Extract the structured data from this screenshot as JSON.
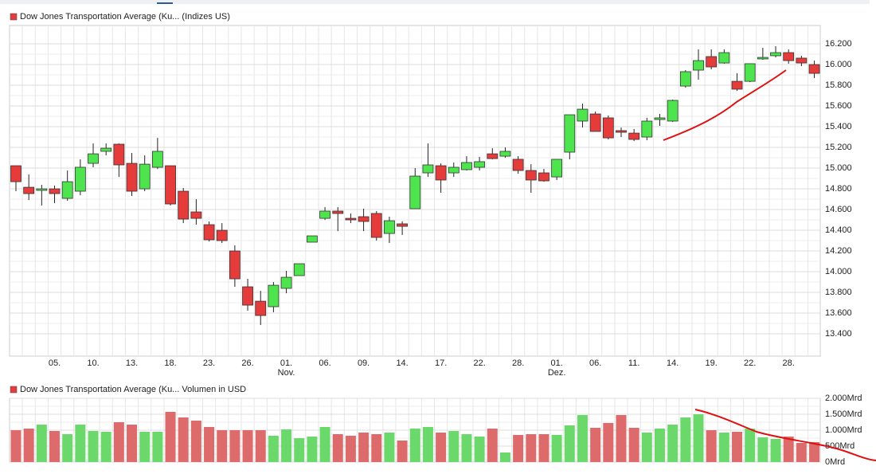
{
  "chart_data": [
    {
      "type": "candlestick",
      "title": "Dow Jones Transportation Average (Ku... (Indizes US)",
      "categories": [
        null,
        null,
        null,
        "05.",
        null,
        null,
        "10.",
        null,
        null,
        "13.",
        null,
        null,
        "18.",
        null,
        null,
        "23.",
        null,
        null,
        "26.",
        null,
        null,
        {
          "label": "01.",
          "sub": "Nov."
        },
        null,
        null,
        "06.",
        null,
        null,
        "09.",
        null,
        null,
        "14.",
        null,
        null,
        "17.",
        null,
        null,
        "22.",
        null,
        null,
        "28.",
        null,
        null,
        {
          "label": "01.",
          "sub": "Dez."
        },
        null,
        null,
        "06.",
        null,
        null,
        "11.",
        null,
        null,
        "14.",
        null,
        null,
        "19.",
        null,
        null,
        "22.",
        null,
        null,
        "28.",
        null,
        null
      ],
      "open": [
        15023,
        14815,
        14785,
        14800,
        14708,
        14777,
        15046,
        15162,
        15231,
        15046,
        14800,
        15008,
        15023,
        14777,
        14577,
        14454,
        14400,
        14200,
        13854,
        13715,
        13662,
        13839,
        13962,
        14285,
        14515,
        14585,
        14515,
        14531,
        14562,
        14369,
        14462,
        14608,
        14954,
        15023,
        14954,
        14985,
        15008,
        15138,
        15115,
        15085,
        14977,
        14954,
        14915,
        15154,
        15454,
        15523,
        15485,
        15362,
        15338,
        15300,
        15469,
        15454,
        15792,
        15946,
        16077,
        16015,
        15838,
        15838,
        16054,
        16085,
        16115,
        16062,
        16000
      ],
      "high": [
        15023,
        14938,
        14839,
        14831,
        14977,
        15085,
        15238,
        15238,
        15238,
        15146,
        15123,
        15292,
        15023,
        14808,
        14700,
        14485,
        14469,
        14254,
        13931,
        13815,
        13900,
        14008,
        14077,
        14346,
        14623,
        14623,
        14562,
        14608,
        14585,
        14531,
        14485,
        15000,
        15238,
        15046,
        15054,
        15115,
        15108,
        15192,
        15200,
        15115,
        15038,
        14992,
        15085,
        15515,
        15623,
        15546,
        15508,
        15392,
        15377,
        15485,
        15523,
        15662,
        15946,
        16146,
        16146,
        16146,
        15915,
        16008,
        16162,
        16177,
        16146,
        16085,
        16038
      ],
      "low": [
        14777,
        14692,
        14639,
        14662,
        14685,
        14738,
        15008,
        15123,
        14915,
        14731,
        14777,
        14992,
        14639,
        14469,
        14454,
        14292,
        14277,
        13854,
        13623,
        13485,
        13608,
        13792,
        13962,
        14285,
        14500,
        14392,
        14469,
        14392,
        14300,
        14277,
        14354,
        14608,
        14915,
        14762,
        14915,
        14977,
        14977,
        15085,
        15100,
        14946,
        14762,
        14869,
        14885,
        15085,
        15392,
        15354,
        15277,
        15300,
        15262,
        15269,
        15408,
        15446,
        15777,
        15854,
        15954,
        16008,
        15746,
        15831,
        16046,
        16069,
        16008,
        15985,
        15869
      ],
      "close": [
        14869,
        14754,
        14800,
        14754,
        14869,
        15008,
        15138,
        15192,
        15031,
        14777,
        15038,
        15162,
        14654,
        14508,
        14515,
        14308,
        14300,
        13931,
        13677,
        13577,
        13869,
        13946,
        14077,
        14346,
        14585,
        14562,
        14500,
        14485,
        14331,
        14492,
        14438,
        14923,
        15031,
        14885,
        15008,
        15054,
        15062,
        15092,
        15162,
        14977,
        14885,
        14877,
        15085,
        15515,
        15569,
        15354,
        15292,
        15346,
        15277,
        15454,
        15485,
        15654,
        15931,
        16038,
        15977,
        16115,
        15762,
        16008,
        16069,
        16115,
        16038,
        16015,
        15915
      ],
      "ylim": [
        13185,
        16377
      ],
      "yticks": [
        {
          "value": 13400,
          "label": "13.400"
        },
        {
          "value": 13600,
          "label": "13.600"
        },
        {
          "value": 13800,
          "label": "13.800"
        },
        {
          "value": 14000,
          "label": "14.000"
        },
        {
          "value": 14200,
          "label": "14.200"
        },
        {
          "value": 14400,
          "label": "14.400"
        },
        {
          "value": 14600,
          "label": "14.600"
        },
        {
          "value": 14800,
          "label": "14.800"
        },
        {
          "value": 15000,
          "label": "15.000"
        },
        {
          "value": 15200,
          "label": "15.200"
        },
        {
          "value": 15400,
          "label": "15.400"
        },
        {
          "value": 15600,
          "label": "15.600"
        },
        {
          "value": 15800,
          "label": "15.800"
        },
        {
          "value": 16000,
          "label": "16.000"
        },
        {
          "value": 16200,
          "label": "16.200"
        }
      ],
      "up_color": "#4ee44e",
      "down_color": "#e53b3b",
      "legend_color": "#e53b3b",
      "grid": true
    },
    {
      "type": "bar",
      "title": "Dow Jones Transportation Average (Ku... Volumen in USD",
      "values": [
        1000,
        1050,
        1175,
        975,
        875,
        1175,
        975,
        950,
        1250,
        1175,
        950,
        950,
        1575,
        1400,
        1300,
        1100,
        1000,
        1000,
        1000,
        1000,
        825,
        1025,
        750,
        800,
        1100,
        875,
        825,
        925,
        875,
        925,
        675,
        1050,
        1100,
        925,
        975,
        875,
        800,
        1050,
        300,
        850,
        875,
        875,
        850,
        1150,
        1475,
        1075,
        1225,
        1475,
        1075,
        925,
        1050,
        1175,
        1400,
        1500,
        1000,
        925,
        950,
        1050,
        775,
        725,
        800,
        600,
        625
      ],
      "ylim": [
        0,
        2000
      ],
      "yticks": [
        {
          "value": 0,
          "label": "0Mrd"
        },
        {
          "value": 500,
          "label": "500Mrd"
        },
        {
          "value": 1000,
          "label": "1.000Mrd"
        },
        {
          "value": 1500,
          "label": "1.500Mrd"
        },
        {
          "value": 2000,
          "label": "2.000Mrd"
        }
      ],
      "up_color": "#6bd86b",
      "down_color": "#de6b6b",
      "legend_color": "#e53b3b",
      "grid": true
    }
  ]
}
